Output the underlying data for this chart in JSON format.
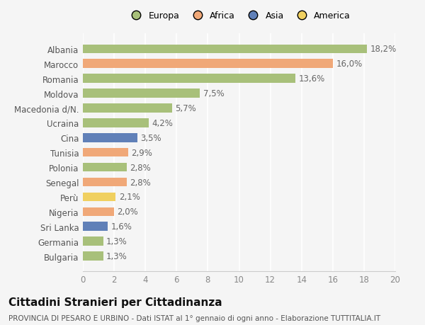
{
  "categories": [
    "Bulgaria",
    "Germania",
    "Sri Lanka",
    "Nigeria",
    "Perù",
    "Senegal",
    "Polonia",
    "Tunisia",
    "Cina",
    "Ucraina",
    "Macedonia d/N.",
    "Moldova",
    "Romania",
    "Marocco",
    "Albania"
  ],
  "values": [
    1.3,
    1.3,
    1.6,
    2.0,
    2.1,
    2.8,
    2.8,
    2.9,
    3.5,
    4.2,
    5.7,
    7.5,
    13.6,
    16.0,
    18.2
  ],
  "labels": [
    "1,3%",
    "1,3%",
    "1,6%",
    "2,0%",
    "2,1%",
    "2,8%",
    "2,8%",
    "2,9%",
    "3,5%",
    "4,2%",
    "5,7%",
    "7,5%",
    "13,6%",
    "16,0%",
    "18,2%"
  ],
  "continent": [
    "Europa",
    "Europa",
    "Asia",
    "Africa",
    "America",
    "Africa",
    "Europa",
    "Africa",
    "Asia",
    "Europa",
    "Europa",
    "Europa",
    "Europa",
    "Africa",
    "Europa"
  ],
  "colors": {
    "Europa": "#a8c07a",
    "Africa": "#f0a878",
    "Asia": "#6080b8",
    "America": "#f0d060"
  },
  "legend_labels": [
    "Europa",
    "Africa",
    "Asia",
    "America"
  ],
  "legend_colors": [
    "#a8c07a",
    "#f0a878",
    "#6080b8",
    "#f0d060"
  ],
  "xlim": [
    0,
    20
  ],
  "xticks": [
    0,
    2,
    4,
    6,
    8,
    10,
    12,
    14,
    16,
    18,
    20
  ],
  "title": "Cittadini Stranieri per Cittadinanza",
  "subtitle": "PROVINCIA DI PESARO E URBINO - Dati ISTAT al 1° gennaio di ogni anno - Elaborazione TUTTITALIA.IT",
  "bg_color": "#f5f5f5",
  "bar_height": 0.6,
  "label_fontsize": 8.5,
  "tick_fontsize": 8.5,
  "title_fontsize": 11,
  "subtitle_fontsize": 7.5
}
